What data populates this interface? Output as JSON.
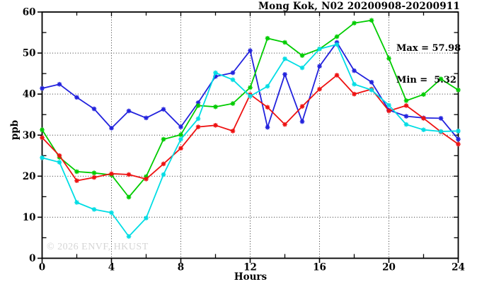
{
  "header": {
    "title": "Mong Kok, N02 20200908-20200911"
  },
  "annotations": {
    "max_label": "Max = 57.98",
    "min_label": "Min =  5.32"
  },
  "watermark": "© 2026 ENVF, HKUST",
  "axes": {
    "ylabel": "ppb",
    "xlabel": "Hours"
  },
  "chart_data": {
    "type": "line",
    "title": "Mong Kok, N02 20200908-20200911",
    "xlabel": "Hours",
    "ylabel": "ppb",
    "xlim": [
      0,
      24
    ],
    "ylim": [
      0,
      60
    ],
    "xticks_major": [
      0,
      4,
      8,
      12,
      16,
      20,
      24
    ],
    "xticks_minor": [
      2,
      6,
      10,
      14,
      18,
      22
    ],
    "yticks_major": [
      0,
      10,
      20,
      30,
      40,
      50,
      60
    ],
    "yticks_minor": [
      5,
      15,
      25,
      35,
      45,
      55
    ],
    "grid": {
      "x": [
        4,
        8,
        12,
        16,
        20
      ],
      "y": [
        10,
        20,
        30,
        40,
        50
      ]
    },
    "legend_position": "none",
    "annotations": {
      "max": 57.98,
      "min": 5.32
    },
    "x": [
      0,
      1,
      2,
      3,
      4,
      5,
      6,
      7,
      8,
      9,
      10,
      11,
      12,
      13,
      14,
      15,
      16,
      17,
      18,
      19,
      20,
      21,
      22,
      23,
      24
    ],
    "series": [
      {
        "name": "blue",
        "color": "#2222dd",
        "values": [
          41.4,
          42.4,
          39.2,
          36.4,
          31.7,
          35.9,
          34.2,
          36.3,
          32.0,
          37.9,
          44.3,
          45.2,
          50.6,
          31.9,
          44.8,
          33.3,
          46.8,
          52.6,
          45.7,
          42.9,
          36.1,
          34.6,
          34.2,
          34.1,
          29.0
        ]
      },
      {
        "name": "green",
        "color": "#00cc00",
        "values": [
          31.3,
          24.6,
          21.1,
          20.8,
          20.3,
          14.9,
          19.9,
          29.0,
          30.1,
          37.2,
          36.9,
          37.7,
          41.6,
          53.6,
          52.6,
          49.4,
          51.0,
          54.0,
          57.3,
          57.98,
          48.7,
          38.4,
          39.9,
          43.7,
          41.0
        ]
      },
      {
        "name": "red",
        "color": "#ee1111",
        "values": [
          29.4,
          25.0,
          18.9,
          19.7,
          20.6,
          20.4,
          19.3,
          23.0,
          26.8,
          32.0,
          32.4,
          31.0,
          39.9,
          36.8,
          32.6,
          37.0,
          41.2,
          44.6,
          40.0,
          41.2,
          35.9,
          37.2,
          34.1,
          30.8,
          27.8
        ]
      },
      {
        "name": "cyan",
        "color": "#00dde4",
        "values": [
          24.5,
          23.4,
          13.6,
          11.9,
          11.1,
          5.32,
          9.8,
          20.4,
          29.0,
          34.0,
          45.2,
          43.5,
          39.5,
          41.9,
          48.6,
          46.4,
          51.0,
          52.1,
          42.4,
          41.0,
          37.3,
          32.6,
          31.3,
          30.9,
          31.0
        ]
      }
    ]
  }
}
